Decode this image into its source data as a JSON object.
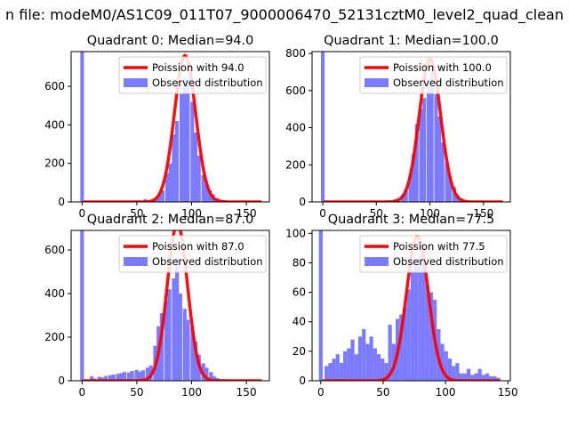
{
  "figure": {
    "suptitle": "n file: modeM0/AS1C09_011T07_9000006470_52131cztM0_level2_quad_clean"
  },
  "colors": {
    "hist": "#7b7bff",
    "fit": "#ff0000",
    "axis": "#000000"
  },
  "chart_data": [
    {
      "type": "bar",
      "title": "Quadrant 0: Median=94.0",
      "median": 94.0,
      "xlim": [
        -10,
        171
      ],
      "ylim": [
        0,
        780
      ],
      "xticks": [
        0,
        50,
        100,
        150
      ],
      "yticks": [
        0,
        200,
        400,
        600
      ],
      "bin_width": 3.3,
      "bin_starts": [
        -1.6,
        49,
        56,
        59,
        62,
        66,
        69,
        72,
        76,
        79,
        82,
        85,
        89,
        92,
        95,
        99,
        102,
        105,
        109,
        112,
        115,
        118,
        122,
        125,
        128,
        132
      ],
      "hist_values": [
        780,
        8,
        15,
        8,
        10,
        22,
        40,
        60,
        150,
        200,
        350,
        420,
        560,
        640,
        640,
        520,
        360,
        240,
        140,
        90,
        60,
        40,
        20,
        12,
        8,
        5
      ],
      "fit_mean": 94.0,
      "fit_amplitude": 760,
      "fit_sigma": 9.7,
      "fit_x_range": [
        1,
        164
      ],
      "legend": {
        "fit_label": "Poission with 94.0",
        "hist_label": "Observed distribution"
      }
    },
    {
      "type": "bar",
      "title": "Quadrant 1: Median=100.0",
      "median": 100.0,
      "xlim": [
        -10,
        175
      ],
      "ylim": [
        0,
        810
      ],
      "xticks": [
        0,
        50,
        100,
        150
      ],
      "yticks": [
        0,
        200,
        400,
        600,
        800
      ],
      "bin_width": 3.4,
      "bin_starts": [
        -1.7,
        52,
        59,
        66,
        69,
        73,
        76,
        80,
        83,
        86,
        90,
        93,
        97,
        100,
        104,
        107,
        110,
        114,
        117,
        121,
        124,
        127,
        131,
        134
      ],
      "hist_values": [
        810,
        5,
        8,
        14,
        20,
        40,
        70,
        150,
        260,
        420,
        500,
        560,
        640,
        700,
        580,
        460,
        320,
        210,
        140,
        80,
        40,
        20,
        10,
        5
      ],
      "fit_mean": 100.0,
      "fit_amplitude": 770,
      "fit_sigma": 10.0,
      "fit_x_range": [
        1,
        168
      ],
      "legend": {
        "fit_label": "Poission with 100.0",
        "hist_label": "Observed distribution"
      }
    },
    {
      "type": "bar",
      "title": "Quadrant 2: Median=87.0",
      "median": 87.0,
      "xlim": [
        -10,
        171
      ],
      "ylim": [
        0,
        690
      ],
      "xticks": [
        0,
        50,
        100,
        150
      ],
      "yticks": [
        0,
        200,
        400,
        600
      ],
      "bin_width": 3.4,
      "bin_starts": [
        -1.7,
        7,
        10,
        14,
        17,
        20,
        24,
        27,
        31,
        34,
        37,
        41,
        44,
        48,
        51,
        54,
        58,
        61,
        65,
        68,
        71,
        75,
        78,
        82,
        85,
        88,
        92,
        95,
        99,
        102,
        105,
        109,
        112,
        116,
        119,
        122,
        126,
        129
      ],
      "hist_values": [
        690,
        20,
        10,
        18,
        15,
        22,
        25,
        28,
        32,
        35,
        40,
        38,
        45,
        50,
        42,
        48,
        60,
        70,
        160,
        250,
        310,
        370,
        420,
        470,
        560,
        400,
        330,
        280,
        250,
        180,
        120,
        80,
        60,
        40,
        20,
        12,
        8,
        5
      ],
      "fit_mean": 87.0,
      "fit_amplitude": 720,
      "fit_sigma": 9.3,
      "fit_x_range": [
        1,
        164
      ],
      "legend": {
        "fit_label": "Poission with 87.0",
        "hist_label": "Observed distribution"
      }
    },
    {
      "type": "bar",
      "title": "Quadrant 3: Median=77.5",
      "median": 77.5,
      "xlim": [
        -7,
        152
      ],
      "ylim": [
        0,
        102
      ],
      "xticks": [
        0,
        50,
        100,
        150
      ],
      "yticks": [
        0,
        20,
        40,
        60,
        80,
        100
      ],
      "bin_width": 3.0,
      "bin_starts": [
        -1.5,
        3,
        6,
        9,
        12,
        15,
        18,
        21,
        24,
        27,
        30,
        33,
        36,
        39,
        42,
        45,
        48,
        51,
        54,
        57,
        60,
        63,
        66,
        69,
        72,
        75,
        78,
        81,
        84,
        87,
        90,
        93,
        96,
        99,
        102,
        105,
        108,
        111,
        114,
        117,
        120,
        123,
        126,
        129,
        132,
        135,
        138,
        141
      ],
      "hist_values": [
        102,
        10,
        12,
        15,
        18,
        12,
        20,
        22,
        28,
        18,
        30,
        35,
        25,
        30,
        22,
        18,
        15,
        12,
        38,
        25,
        42,
        45,
        50,
        62,
        75,
        80,
        85,
        90,
        65,
        60,
        55,
        35,
        25,
        20,
        15,
        10,
        12,
        5,
        5,
        8,
        4,
        5,
        8,
        4,
        5,
        3,
        3,
        2
      ],
      "fit_mean": 77.5,
      "fit_amplitude": 98,
      "fit_sigma": 8.8,
      "fit_x_range": [
        1,
        143
      ],
      "legend": {
        "fit_label": "Poission with 77.5",
        "hist_label": "Observed distribution"
      }
    }
  ]
}
